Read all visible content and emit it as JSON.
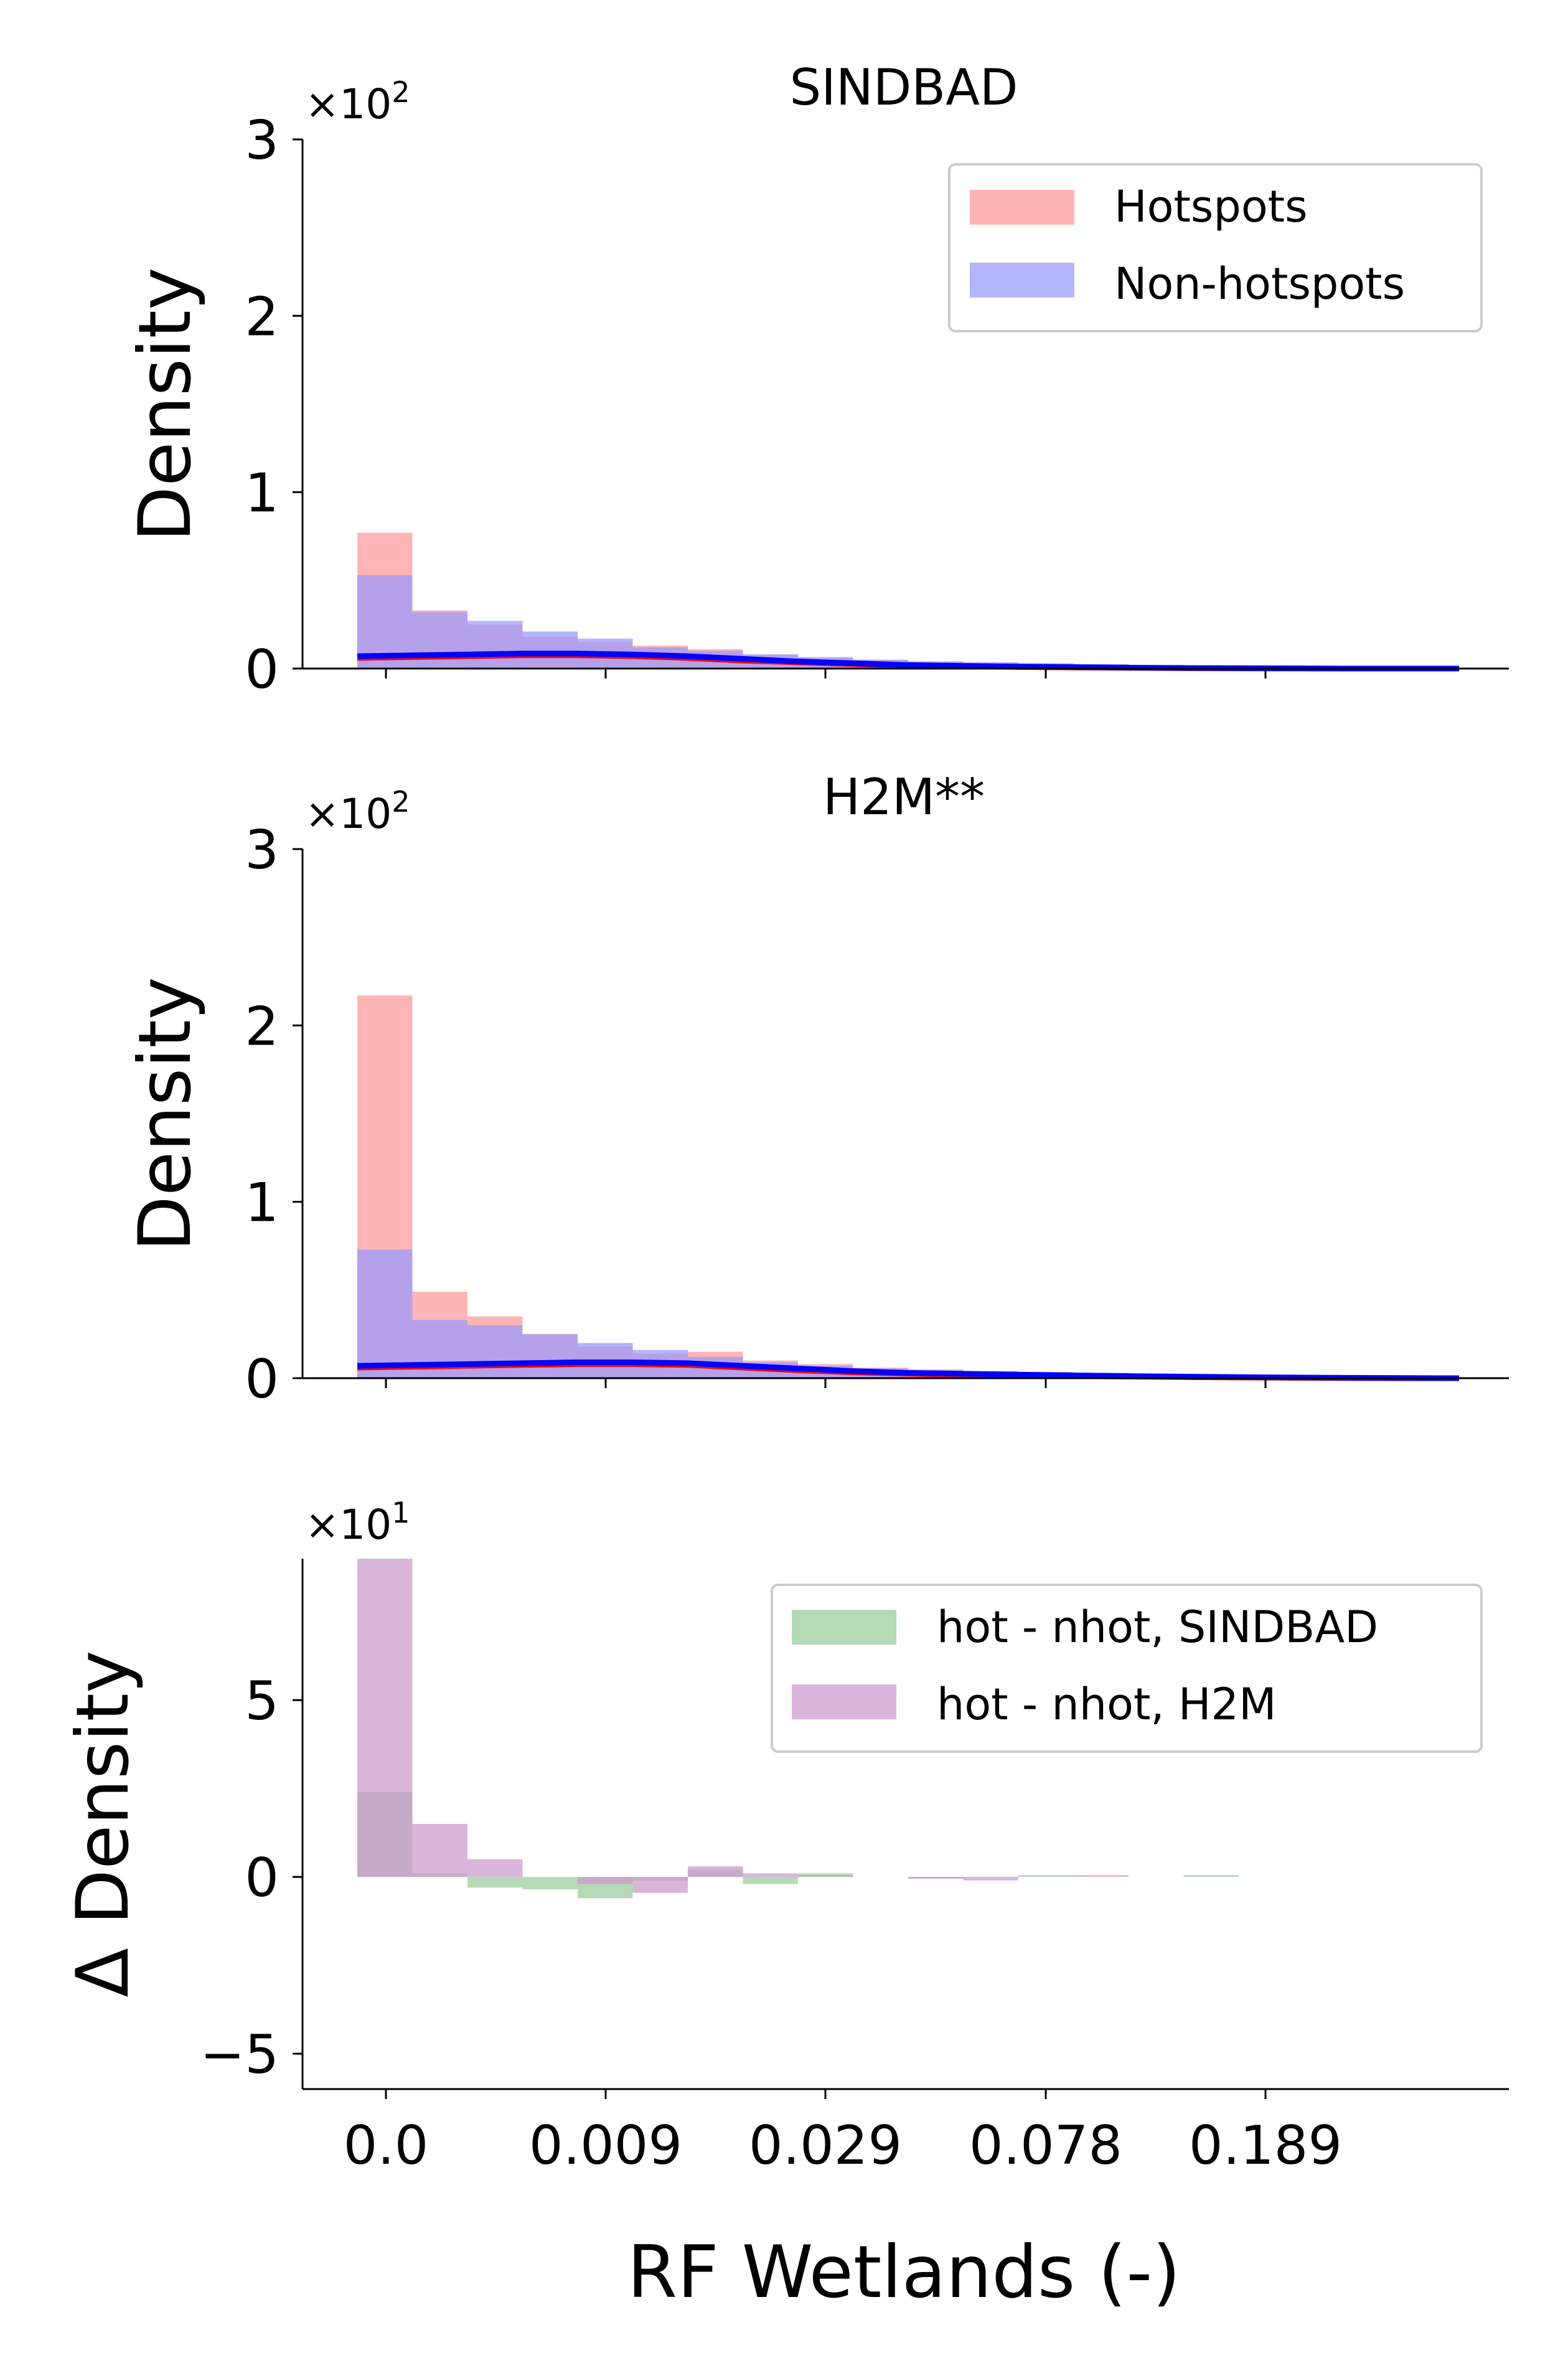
{
  "chart_data": [
    {
      "type": "bar",
      "title": "SINDBAD",
      "ylabel": "Density",
      "y_multiplier": {
        "base": "×10",
        "exponent": "2"
      },
      "ylim": [
        0,
        3
      ],
      "yticks": [
        0,
        1,
        2,
        3
      ],
      "bin_edges": [
        0,
        0.5,
        1,
        1.5,
        2,
        2.5,
        3,
        3.5,
        4,
        4.5,
        5,
        5.5,
        6,
        6.5,
        7,
        7.5,
        8,
        8.5,
        9,
        9.5,
        10
      ],
      "series": [
        {
          "name": "Hotspots",
          "color": "#ff9999",
          "opacity": 0.72,
          "values": [
            0.77,
            0.33,
            0.25,
            0.18,
            0.15,
            0.13,
            0.11,
            0.08,
            0.06,
            0.05,
            0.04,
            0.035,
            0.03,
            0.025,
            0.02,
            0.015,
            0.01,
            0.008,
            0.006,
            0.004
          ]
        },
        {
          "name": "Non-hotspots",
          "color": "#9999ff",
          "opacity": 0.72,
          "values": [
            0.53,
            0.32,
            0.27,
            0.21,
            0.17,
            0.12,
            0.1,
            0.08,
            0.065,
            0.05,
            0.04,
            0.035,
            0.03,
            0.025,
            0.02,
            0.015,
            0.01,
            0.008,
            0.006,
            0.004
          ]
        }
      ],
      "kde": [
        {
          "color": "#ff0000",
          "points": [
            [
              0,
              0.06
            ],
            [
              1,
              0.065
            ],
            [
              2,
              0.07
            ],
            [
              3,
              0.075
            ],
            [
              4,
              0.075
            ],
            [
              5,
              0.07
            ],
            [
              6,
              0.06
            ],
            [
              7,
              0.045
            ],
            [
              8,
              0.035
            ],
            [
              9,
              0.025
            ],
            [
              10,
              0.017
            ],
            [
              11,
              0.013
            ],
            [
              12,
              0.009
            ],
            [
              13,
              0.006
            ],
            [
              14,
              0.004
            ],
            [
              15,
              0.002
            ],
            [
              16,
              0.001
            ],
            [
              17,
              0.001
            ],
            [
              18,
              0
            ],
            [
              19,
              0
            ],
            [
              20,
              0
            ]
          ]
        },
        {
          "color": "#0000ff",
          "points": [
            [
              0,
              0.07
            ],
            [
              1,
              0.075
            ],
            [
              2,
              0.08
            ],
            [
              3,
              0.085
            ],
            [
              4,
              0.085
            ],
            [
              5,
              0.08
            ],
            [
              6,
              0.07
            ],
            [
              7,
              0.055
            ],
            [
              8,
              0.04
            ],
            [
              9,
              0.03
            ],
            [
              10,
              0.02
            ],
            [
              11,
              0.015
            ],
            [
              12,
              0.011
            ],
            [
              13,
              0.008
            ],
            [
              14,
              0.005
            ],
            [
              15,
              0.003
            ],
            [
              16,
              0.002
            ],
            [
              17,
              0.001
            ],
            [
              18,
              0
            ],
            [
              19,
              0
            ],
            [
              20,
              0
            ]
          ]
        }
      ],
      "legend": {
        "position": "top-right",
        "entries": [
          "Hotspots",
          "Non-hotspots"
        ]
      }
    },
    {
      "type": "bar",
      "title": "H2M**",
      "ylabel": "Density",
      "y_multiplier": {
        "base": "×10",
        "exponent": "2"
      },
      "ylim": [
        0,
        3
      ],
      "yticks": [
        0,
        1,
        2,
        3
      ],
      "bin_edges": [
        0,
        0.5,
        1,
        1.5,
        2,
        2.5,
        3,
        3.5,
        4,
        4.5,
        5,
        5.5,
        6,
        6.5,
        7,
        7.5,
        8,
        8.5,
        9,
        9.5,
        10
      ],
      "series": [
        {
          "name": "Hotspots",
          "color": "#ff9999",
          "opacity": 0.72,
          "values": [
            2.17,
            0.49,
            0.35,
            0.25,
            0.18,
            0.14,
            0.15,
            0.1,
            0.08,
            0.06,
            0.05,
            0.04,
            0.035,
            0.03,
            0.025,
            0.02,
            0.015,
            0.01,
            0.008,
            0.005
          ]
        },
        {
          "name": "Non-hotspots",
          "color": "#9999ff",
          "opacity": 0.72,
          "values": [
            0.73,
            0.33,
            0.3,
            0.25,
            0.2,
            0.16,
            0.12,
            0.09,
            0.07,
            0.055,
            0.045,
            0.04,
            0.035,
            0.03,
            0.025,
            0.02,
            0.015,
            0.01,
            0.008,
            0.005
          ]
        }
      ],
      "kde": [
        {
          "color": "#ff0000",
          "points": [
            [
              0,
              0.06
            ],
            [
              1,
              0.065
            ],
            [
              2,
              0.07
            ],
            [
              3,
              0.075
            ],
            [
              4,
              0.08
            ],
            [
              5,
              0.08
            ],
            [
              6,
              0.075
            ],
            [
              7,
              0.06
            ],
            [
              8,
              0.045
            ],
            [
              9,
              0.033
            ],
            [
              10,
              0.025
            ],
            [
              11,
              0.02
            ],
            [
              12,
              0.015
            ],
            [
              13,
              0.012
            ],
            [
              14,
              0.009
            ],
            [
              15,
              0.006
            ],
            [
              16,
              0.004
            ],
            [
              17,
              0.002
            ],
            [
              18,
              0.001
            ],
            [
              19,
              0
            ],
            [
              20,
              0
            ]
          ]
        },
        {
          "color": "#0000ff",
          "points": [
            [
              0,
              0.07
            ],
            [
              1,
              0.075
            ],
            [
              2,
              0.08
            ],
            [
              3,
              0.085
            ],
            [
              4,
              0.09
            ],
            [
              5,
              0.09
            ],
            [
              6,
              0.085
            ],
            [
              7,
              0.07
            ],
            [
              8,
              0.055
            ],
            [
              9,
              0.04
            ],
            [
              10,
              0.03
            ],
            [
              11,
              0.025
            ],
            [
              12,
              0.02
            ],
            [
              13,
              0.016
            ],
            [
              14,
              0.012
            ],
            [
              15,
              0.009
            ],
            [
              16,
              0.006
            ],
            [
              17,
              0.004
            ],
            [
              18,
              0.002
            ],
            [
              19,
              0.001
            ],
            [
              20,
              0
            ]
          ]
        }
      ]
    },
    {
      "type": "bar",
      "title": "",
      "xlabel": "RF Wetlands (-)",
      "ylabel": "Δ Density",
      "y_multiplier": {
        "base": "×10",
        "exponent": "1"
      },
      "ylim": [
        -6,
        9
      ],
      "yticks": [
        -5,
        0,
        5
      ],
      "x_tick_labels": [
        "0.0",
        "0.009",
        "0.029",
        "0.078",
        "0.189"
      ],
      "bin_edges": [
        0,
        0.5,
        1,
        1.5,
        2,
        2.5,
        3,
        3.5,
        4,
        4.5,
        5,
        5.5,
        6,
        6.5,
        7,
        7.5,
        8,
        8.5,
        9,
        9.5,
        10
      ],
      "series": [
        {
          "name": "hot - nhot, SINDBAD",
          "color": "#99cc99",
          "opacity": 0.72,
          "values": [
            2.4,
            0.1,
            -0.3,
            -0.35,
            -0.6,
            -0.1,
            0.2,
            -0.2,
            0.1,
            0.0,
            -0.05,
            0.0,
            0.05,
            0.0,
            0.0,
            0.05,
            0.0,
            0.0,
            0.0,
            0.0
          ]
        },
        {
          "name": "hot - nhot, H2M",
          "color": "#cc99cc",
          "opacity": 0.72,
          "values": [
            9.0,
            1.5,
            0.5,
            0.0,
            -0.2,
            -0.45,
            0.3,
            0.1,
            0.05,
            0.0,
            -0.05,
            -0.1,
            0.0,
            0.05,
            0.0,
            0.0,
            0.0,
            0.0,
            0.0,
            0.0
          ]
        }
      ],
      "legend": {
        "position": "top-right",
        "entries": [
          "hot - nhot, SINDBAD",
          "hot - nhot, H2M"
        ]
      }
    }
  ]
}
